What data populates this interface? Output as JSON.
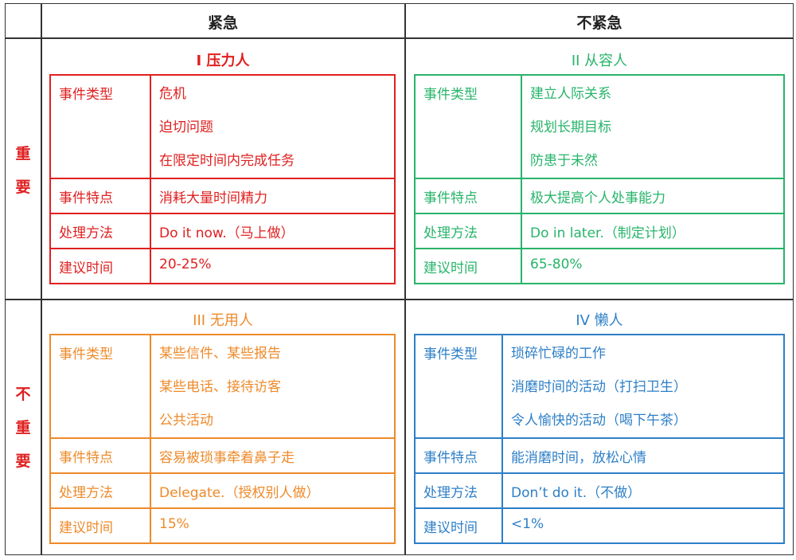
{
  "header": {
    "urgent": "紧急",
    "not_urgent": "不紧急"
  },
  "side": {
    "important": [
      "重",
      "要"
    ],
    "not_important": [
      "不",
      "重",
      "要"
    ]
  },
  "quadrants": [
    {
      "title": "I 压力人",
      "color": "#e02020",
      "rows": [
        {
          "label": "事件类型",
          "values": [
            "危机",
            "迫切问题",
            "在限定时间内完成任务"
          ]
        },
        {
          "label": "事件特点",
          "values": [
            "消耗大量时间精力"
          ]
        },
        {
          "label": "处理方法",
          "values": [
            "Do it now.（马上做）"
          ]
        },
        {
          "label": "建议时间",
          "values": [
            "20-25%"
          ]
        }
      ]
    },
    {
      "title": "II 从容人",
      "color": "#27b46a",
      "rows": [
        {
          "label": "事件类型",
          "values": [
            "建立人际关系",
            "规划长期目标",
            "防患于未然"
          ]
        },
        {
          "label": "事件特点",
          "values": [
            "极大提高个人处事能力"
          ]
        },
        {
          "label": "处理方法",
          "values": [
            "Do in later.（制定计划）"
          ]
        },
        {
          "label": "建议时间",
          "values": [
            "65-80%"
          ]
        }
      ]
    },
    {
      "title": "III 无用人",
      "color": "#ee8a2a",
      "rows": [
        {
          "label": "事件类型",
          "values": [
            "某些信件、某些报告",
            "某些电话、接待访客",
            "公共活动"
          ]
        },
        {
          "label": "事件特点",
          "values": [
            "容易被琐事牵着鼻子走"
          ]
        },
        {
          "label": "处理方法",
          "values": [
            "Delegate.（授权别人做）"
          ]
        },
        {
          "label": "建议时间",
          "values": [
            "15%"
          ]
        }
      ]
    },
    {
      "title": "IV 懒人",
      "color": "#2d7fc7",
      "rows": [
        {
          "label": "事件类型",
          "values": [
            "琐碎忙碌的工作",
            "消磨时间的活动（打扫卫生）",
            "令人愉快的活动（喝下午茶）"
          ]
        },
        {
          "label": "事件特点",
          "values": [
            "能消磨时间，放松心情"
          ]
        },
        {
          "label": "处理方法",
          "values": [
            "Don’t do it.（不做）"
          ]
        },
        {
          "label": "建议时间",
          "values": [
            "<1%"
          ]
        }
      ]
    }
  ]
}
